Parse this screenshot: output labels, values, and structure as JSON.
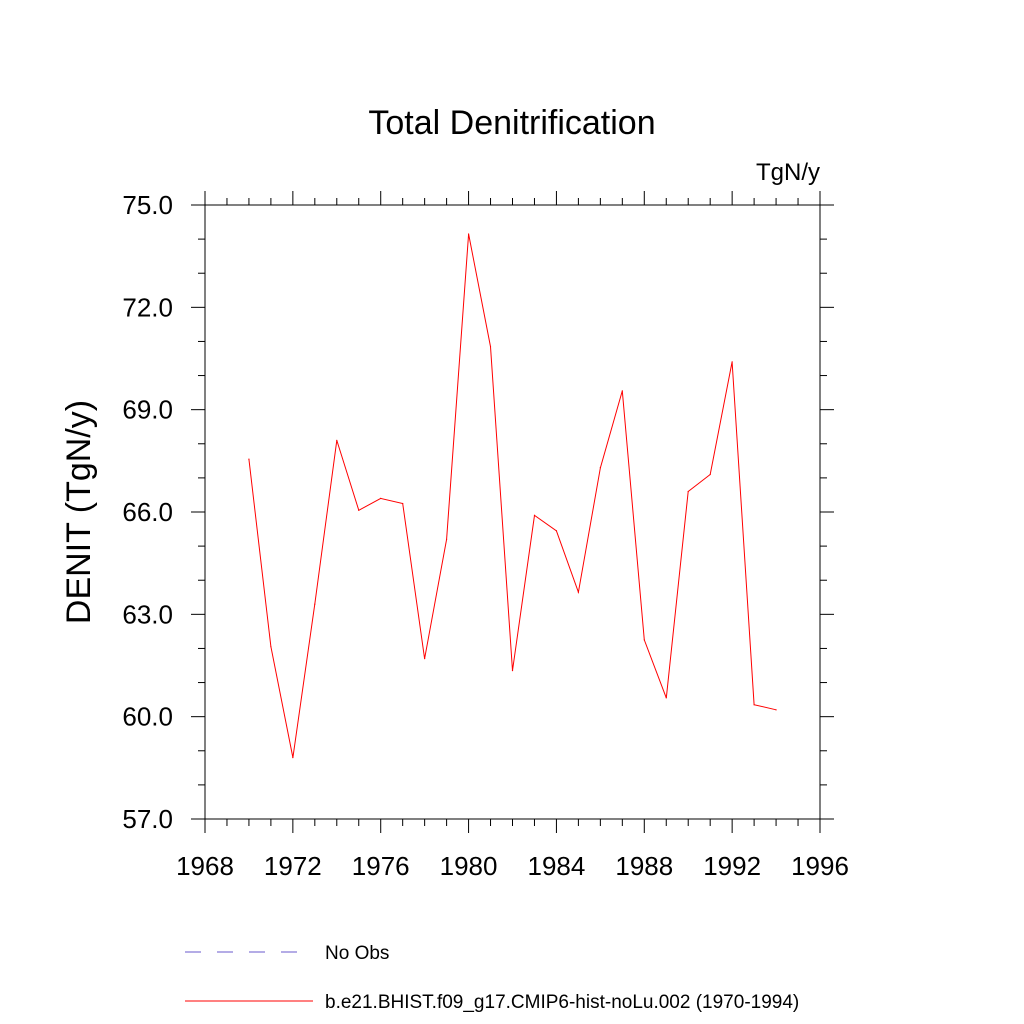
{
  "chart_data": {
    "type": "line",
    "title": "Total Denitrification",
    "units_label": "TgN/y",
    "ylabel": "DENIT  (TgN/y)",
    "xlabel": "",
    "xlim": [
      1968,
      1996
    ],
    "ylim": [
      57.0,
      75.0
    ],
    "x_ticks": [
      1968,
      1972,
      1976,
      1980,
      1984,
      1988,
      1992,
      1996
    ],
    "x_tick_labels": [
      "1968",
      "1972",
      "1976",
      "1980",
      "1984",
      "1988",
      "1992",
      "1996"
    ],
    "y_ticks": [
      57.0,
      60.0,
      63.0,
      66.0,
      69.0,
      72.0,
      75.0
    ],
    "y_tick_labels": [
      "57.0",
      "60.0",
      "63.0",
      "66.0",
      "69.0",
      "72.0",
      "75.0"
    ],
    "grid": false,
    "legend_position": "bottom",
    "legend": [
      {
        "label": "No Obs",
        "color": "#6a5acd",
        "style": "dashed"
      },
      {
        "label": "b.e21.BHIST.f09_g17.CMIP6-hist-noLu.002 (1970-1994)",
        "color": "#ff0000",
        "style": "solid"
      }
    ],
    "series": [
      {
        "name": "b.e21.BHIST.f09_g17.CMIP6-hist-noLu.002 (1970-1994)",
        "color": "#ff0000",
        "x": [
          1970,
          1971,
          1972,
          1973,
          1974,
          1975,
          1976,
          1977,
          1978,
          1979,
          1980,
          1981,
          1982,
          1983,
          1984,
          1985,
          1986,
          1987,
          1988,
          1989,
          1990,
          1991,
          1992,
          1993,
          1994
        ],
        "y": [
          67.55,
          62.05,
          58.8,
          63.3,
          68.1,
          66.05,
          66.4,
          66.25,
          61.7,
          65.2,
          74.15,
          70.85,
          61.35,
          65.9,
          65.45,
          63.65,
          67.3,
          69.55,
          62.25,
          60.55,
          66.6,
          67.1,
          70.4,
          60.35,
          60.2
        ]
      }
    ]
  }
}
